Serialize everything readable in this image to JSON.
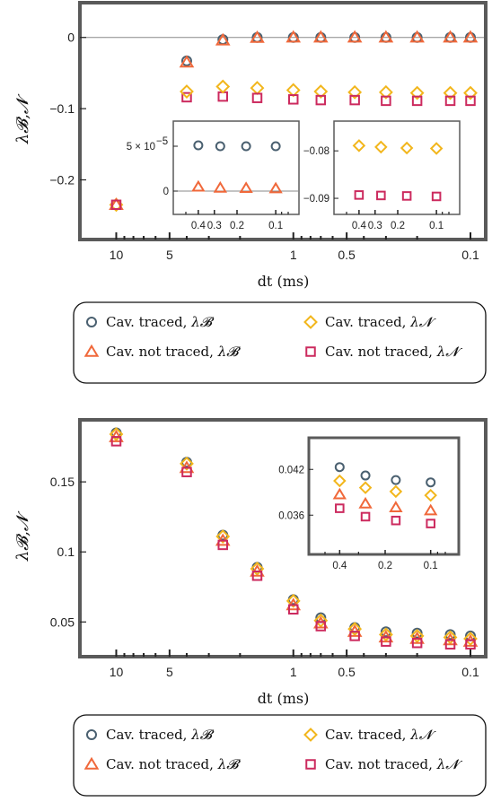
{
  "colors": {
    "traced_B": "#4a6070",
    "traced_N": "#f2b61c",
    "not_traced_B": "#f0683a",
    "not_traced_N": "#cc2a5e",
    "frame": "#5a5a5a"
  },
  "legend": {
    "items": [
      {
        "label": "Cav. traced, ",
        "sub": "λ𝓑",
        "marker": "circle",
        "color_key": "traced_B"
      },
      {
        "label": "Cav. traced, ",
        "sub": "λ𝓝",
        "marker": "diamond",
        "color_key": "traced_N"
      },
      {
        "label": "Cav. not traced, ",
        "sub": "λ𝓑",
        "marker": "triangle",
        "color_key": "not_traced_B"
      },
      {
        "label": "Cav. not traced, ",
        "sub": "λ𝓝",
        "marker": "square",
        "color_key": "not_traced_N"
      }
    ]
  },
  "chart_data": [
    {
      "type": "scatter",
      "xlabel": "dt (ms)",
      "ylabel": "λ𝓑,𝓝",
      "x_scale": "log-reversed",
      "xlim": [
        13,
        0.1
      ],
      "ylim": [
        -0.28,
        0.045
      ],
      "xticks": [
        {
          "v": 10,
          "t": "10"
        },
        {
          "v": 5,
          "t": "5"
        },
        {
          "v": 1,
          "t": "1"
        },
        {
          "v": 0.5,
          "t": "0.5"
        },
        {
          "v": 0.1,
          "t": "0.1"
        }
      ],
      "yticks": [
        {
          "v": 0,
          "t": "0"
        },
        {
          "v": -0.1,
          "t": "−0.1"
        },
        {
          "v": -0.2,
          "t": "−0.2"
        }
      ],
      "zero_line": true,
      "x": [
        10,
        4,
        2.5,
        1.6,
        1,
        0.7,
        0.45,
        0.3,
        0.2,
        0.13,
        0.1
      ],
      "series": [
        {
          "name": "Cav. traced, λ𝓑",
          "marker": "circle",
          "color_key": "traced_B",
          "values": [
            -0.235,
            -0.033,
            -0.003,
            0,
            0,
            0,
            0,
            0,
            0,
            0,
            0
          ]
        },
        {
          "name": "Cav. traced, λ𝓝",
          "marker": "diamond",
          "color_key": "traced_N",
          "values": [
            -0.235,
            null,
            null,
            -0.071,
            -0.074,
            -0.076,
            -0.077,
            -0.077,
            -0.078,
            -0.078,
            -0.078
          ]
        },
        {
          "name": "Cav. not traced, λ𝓑",
          "marker": "triangle",
          "color_key": "not_traced_B",
          "values": [
            -0.235,
            -0.035,
            -0.004,
            -0.0005,
            0,
            0,
            0,
            0,
            0,
            0,
            0
          ]
        },
        {
          "name": "Cav. not traced, λ𝓝",
          "marker": "square",
          "color_key": "not_traced_N",
          "values": [
            -0.235,
            -0.084,
            -0.083,
            -0.085,
            -0.087,
            -0.088,
            -0.088,
            -0.089,
            -0.089,
            -0.089,
            -0.089
          ]
        }
      ],
      "extra_points": [
        {
          "series": "Cav. traced, λ𝓝",
          "x": 4,
          "y": -0.076
        },
        {
          "series": "Cav. traced, λ𝓝",
          "x": 2.5,
          "y": -0.069
        }
      ],
      "insets": [
        {
          "x_scale": "log-reversed",
          "xlim": [
            0.5,
            0.08
          ],
          "ylim": [
            -1e-05,
            6e-05
          ],
          "xticks": [
            {
              "v": 0.4,
              "t": "0.4"
            },
            {
              "v": 0.3,
              "t": "0.3"
            },
            {
              "v": 0.2,
              "t": "0.2"
            },
            {
              "v": 0.1,
              "t": "0.1"
            }
          ],
          "yticks": [
            {
              "v": 5e-05,
              "t": "5 × 10"
            },
            {
              "v": 0,
              "t": "0"
            }
          ],
          "ytick_exp": "−5",
          "zero_line": true,
          "x": [
            0.4,
            0.27,
            0.17,
            0.1
          ],
          "series": [
            {
              "name": "Cav. traced, λ𝓑",
              "marker": "circle",
              "color_key": "traced_B",
              "values": [
                5.1e-05,
                5e-05,
                5e-05,
                5e-05
              ]
            },
            {
              "name": "Cav. not traced, λ𝓑",
              "marker": "triangle",
              "color_key": "not_traced_B",
              "values": [
                4.7e-06,
                3.5e-06,
                3.2e-06,
                2.8e-06
              ]
            }
          ]
        },
        {
          "x_scale": "log-reversed",
          "xlim": [
            0.5,
            0.08
          ],
          "ylim": [
            -0.0915,
            -0.076
          ],
          "xticks": [
            {
              "v": 0.4,
              "t": "0.4"
            },
            {
              "v": 0.3,
              "t": "0.3"
            },
            {
              "v": 0.2,
              "t": "0.2"
            },
            {
              "v": 0.1,
              "t": "0.1"
            }
          ],
          "yticks": [
            {
              "v": -0.08,
              "t": "−0.08"
            },
            {
              "v": -0.09,
              "t": "−0.09"
            }
          ],
          "x": [
            0.4,
            0.27,
            0.17,
            0.1
          ],
          "series": [
            {
              "name": "Cav. traced, λ𝓝",
              "marker": "diamond",
              "color_key": "traced_N",
              "values": [
                -0.0789,
                -0.0792,
                -0.0794,
                -0.0795
              ]
            },
            {
              "name": "Cav. not traced, λ𝓝",
              "marker": "square",
              "color_key": "not_traced_N",
              "values": [
                -0.0893,
                -0.0894,
                -0.0895,
                -0.0896
              ]
            }
          ]
        }
      ]
    },
    {
      "type": "scatter",
      "xlabel": "dt (ms)",
      "ylabel": "λ𝓑,𝓝",
      "x_scale": "log-reversed",
      "xlim": [
        13,
        0.1
      ],
      "ylim": [
        0.0265,
        0.193
      ],
      "xticks": [
        {
          "v": 10,
          "t": "10"
        },
        {
          "v": 5,
          "t": "5"
        },
        {
          "v": 1,
          "t": "1"
        },
        {
          "v": 0.5,
          "t": "0.5"
        },
        {
          "v": 0.1,
          "t": "0.1"
        }
      ],
      "yticks": [
        {
          "v": 0.15,
          "t": "0.15"
        },
        {
          "v": 0.1,
          "t": "0.1"
        },
        {
          "v": 0.05,
          "t": "0.05"
        }
      ],
      "zero_line": false,
      "x": [
        10,
        4,
        2.5,
        1.6,
        1,
        0.7,
        0.45,
        0.3,
        0.2,
        0.13,
        0.1
      ],
      "series": [
        {
          "name": "Cav. traced, λ𝓑",
          "marker": "circle",
          "color_key": "traced_B",
          "values": [
            0.185,
            0.164,
            0.112,
            0.089,
            0.066,
            0.053,
            0.046,
            0.043,
            0.042,
            0.041,
            0.04
          ]
        },
        {
          "name": "Cav. traced, λ𝓝",
          "marker": "diamond",
          "color_key": "traced_N",
          "values": [
            0.184,
            0.163,
            0.111,
            0.088,
            0.065,
            0.051,
            0.045,
            0.041,
            0.04,
            0.039,
            0.038
          ]
        },
        {
          "name": "Cav. not traced, λ𝓑",
          "marker": "triangle",
          "color_key": "not_traced_B",
          "values": [
            0.182,
            0.16,
            0.108,
            0.086,
            0.062,
            0.049,
            0.043,
            0.039,
            0.038,
            0.037,
            0.036
          ]
        },
        {
          "name": "Cav. not traced, λ𝓝",
          "marker": "square",
          "color_key": "not_traced_N",
          "values": [
            0.179,
            0.157,
            0.105,
            0.083,
            0.059,
            0.047,
            0.04,
            0.036,
            0.035,
            0.034,
            0.034
          ]
        }
      ],
      "insets": [
        {
          "x_scale": "log-reversed",
          "xlim": [
            0.5,
            0.08
          ],
          "ylim": [
            0.0325,
            0.0445
          ],
          "xticks": [
            {
              "v": 0.4,
              "t": "0.4"
            },
            {
              "v": 0.2,
              "t": "0.2"
            },
            {
              "v": 0.1,
              "t": "0.1"
            }
          ],
          "yticks": [
            {
              "v": 0.042,
              "t": "0.042"
            },
            {
              "v": 0.036,
              "t": "0.036"
            }
          ],
          "x": [
            0.4,
            0.27,
            0.17,
            0.1
          ],
          "series": [
            {
              "name": "Cav. traced, λ𝓑",
              "marker": "circle",
              "color_key": "traced_B",
              "values": [
                0.0423,
                0.0412,
                0.0406,
                0.0403
              ]
            },
            {
              "name": "Cav. traced, λ𝓝",
              "marker": "diamond",
              "color_key": "traced_N",
              "values": [
                0.0405,
                0.0396,
                0.0391,
                0.0386
              ]
            },
            {
              "name": "Cav. not traced, λ𝓑",
              "marker": "triangle",
              "color_key": "not_traced_B",
              "values": [
                0.0387,
                0.0375,
                0.037,
                0.0366
              ]
            },
            {
              "name": "Cav. not traced, λ𝓝",
              "marker": "square",
              "color_key": "not_traced_N",
              "values": [
                0.0369,
                0.0358,
                0.0353,
                0.0349
              ]
            }
          ]
        }
      ]
    }
  ]
}
